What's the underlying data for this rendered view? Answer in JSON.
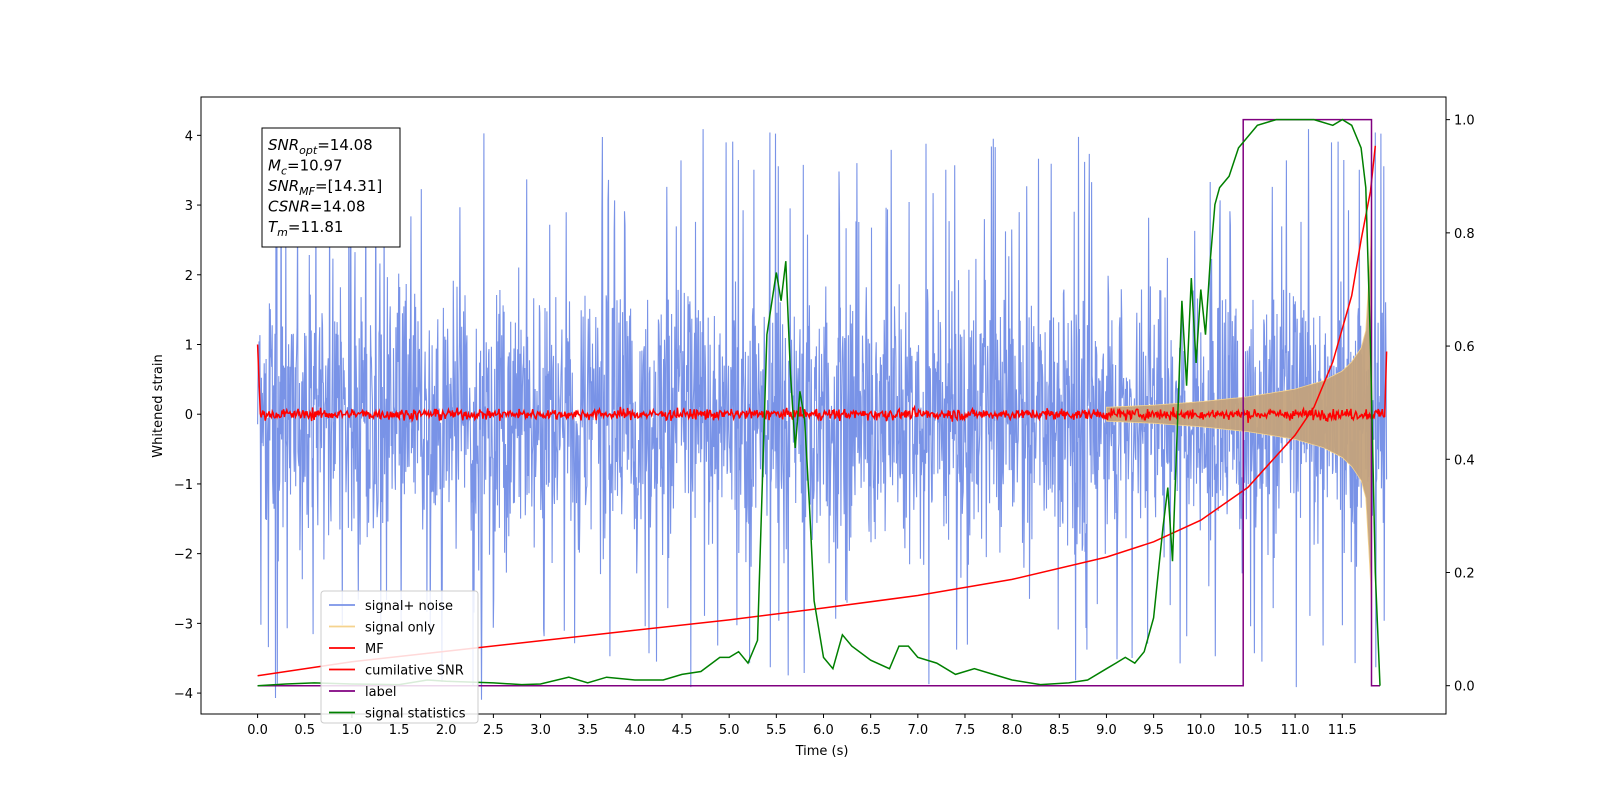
{
  "chart_data": {
    "type": "line",
    "xlabel": "Time (s)",
    "ylabel": "Whitened strain",
    "xlim": [
      -0.6,
      12.6
    ],
    "ylim": [
      -4.3,
      4.55
    ],
    "ylim_right": [
      -0.05,
      1.04
    ],
    "x_ticks": [
      "0.0",
      "0.5",
      "1.0",
      "1.5",
      "2.0",
      "2.5",
      "3.0",
      "3.5",
      "4.0",
      "4.5",
      "5.0",
      "5.5",
      "6.0",
      "6.5",
      "7.0",
      "7.5",
      "8.0",
      "8.5",
      "9.0",
      "9.5",
      "10.0",
      "10.5",
      "11.0",
      "11.5"
    ],
    "y_ticks": [
      "−4",
      "−3",
      "−2",
      "−1",
      "0",
      "1",
      "2",
      "3",
      "4"
    ],
    "y_ticks_right": [
      "0.0",
      "0.2",
      "0.4",
      "0.6",
      "0.8",
      "1.0"
    ],
    "grid": false,
    "legend_position": "lower-left",
    "annotation": [
      {
        "sym": "SNR",
        "sub": "opt",
        "value": "=14.08"
      },
      {
        "sym": "M",
        "sub": "c",
        "value": "=10.97"
      },
      {
        "sym": "SNR",
        "sub": "MF",
        "value": "=[14.31]"
      },
      {
        "sym": "CSNR",
        "sub": "",
        "value": "=14.08"
      },
      {
        "sym": "T",
        "sub": "m",
        "value": "=11.81"
      }
    ],
    "series": [
      {
        "name": "signal+ noise",
        "color": "#7993e7",
        "axis": "left",
        "style": "noise",
        "amplitude_typical": 1.7,
        "amplitude_peak": 4.2
      },
      {
        "name": "signal only",
        "color": "#f5d38e",
        "fill_color": "#c4a27c",
        "axis": "left",
        "style": "chirp",
        "envelope": {
          "x": [
            9.0,
            9.5,
            10.0,
            10.5,
            11.0,
            11.3,
            11.5,
            11.6,
            11.7,
            11.75,
            11.8,
            11.81
          ],
          "y": [
            0.1,
            0.13,
            0.18,
            0.25,
            0.36,
            0.48,
            0.62,
            0.75,
            0.95,
            1.2,
            2.4,
            3.0
          ]
        }
      },
      {
        "name": "MF",
        "color": "#ff0000",
        "axis": "left",
        "style": "mf",
        "noise_amplitude": 0.1,
        "start_value": 1.0,
        "end_value": 0.9
      },
      {
        "name": "cumilative SNR",
        "color": "#ff0000",
        "axis": "left",
        "x": [
          0.0,
          1.0,
          2.0,
          3.0,
          4.0,
          5.0,
          6.0,
          7.0,
          8.0,
          9.0,
          9.5,
          10.0,
          10.5,
          11.0,
          11.2,
          11.4,
          11.6,
          11.7,
          11.8,
          11.85
        ],
        "y": [
          -3.75,
          -3.55,
          -3.4,
          -3.25,
          -3.1,
          -2.95,
          -2.78,
          -2.6,
          -2.37,
          -2.05,
          -1.83,
          -1.52,
          -1.05,
          -0.3,
          0.1,
          0.75,
          1.7,
          2.5,
          3.2,
          3.85
        ]
      },
      {
        "name": "label",
        "color": "#800080",
        "axis": "right",
        "x": [
          0.0,
          10.45,
          10.45,
          11.81,
          11.81,
          11.9
        ],
        "y": [
          0.0,
          0.0,
          1.0,
          1.0,
          0.0,
          0.0
        ]
      },
      {
        "name": "signal statistics",
        "color": "#008000",
        "axis": "right",
        "x": [
          0.0,
          0.3,
          0.6,
          1.0,
          1.5,
          1.8,
          2.0,
          2.5,
          2.8,
          3.0,
          3.3,
          3.5,
          3.7,
          4.0,
          4.3,
          4.5,
          4.7,
          4.9,
          5.0,
          5.1,
          5.2,
          5.3,
          5.4,
          5.5,
          5.55,
          5.6,
          5.65,
          5.7,
          5.75,
          5.8,
          5.85,
          5.9,
          6.0,
          6.1,
          6.2,
          6.3,
          6.5,
          6.7,
          6.8,
          6.9,
          7.0,
          7.2,
          7.4,
          7.6,
          7.8,
          8.0,
          8.3,
          8.6,
          8.8,
          9.0,
          9.1,
          9.2,
          9.3,
          9.4,
          9.5,
          9.6,
          9.65,
          9.7,
          9.75,
          9.8,
          9.85,
          9.9,
          9.95,
          10.0,
          10.05,
          10.1,
          10.15,
          10.2,
          10.3,
          10.4,
          10.5,
          10.6,
          10.8,
          11.0,
          11.2,
          11.4,
          11.5,
          11.6,
          11.7,
          11.75,
          11.8,
          11.85,
          11.9
        ],
        "y": [
          0.0,
          0.003,
          0.005,
          0.003,
          0.002,
          0.01,
          0.008,
          0.005,
          0.002,
          0.003,
          0.015,
          0.005,
          0.015,
          0.01,
          0.01,
          0.02,
          0.025,
          0.05,
          0.05,
          0.06,
          0.04,
          0.08,
          0.62,
          0.73,
          0.68,
          0.75,
          0.55,
          0.42,
          0.52,
          0.47,
          0.32,
          0.15,
          0.05,
          0.03,
          0.09,
          0.07,
          0.045,
          0.03,
          0.07,
          0.07,
          0.05,
          0.04,
          0.02,
          0.03,
          0.02,
          0.01,
          0.002,
          0.005,
          0.01,
          0.03,
          0.04,
          0.05,
          0.04,
          0.06,
          0.12,
          0.28,
          0.35,
          0.22,
          0.45,
          0.68,
          0.53,
          0.72,
          0.57,
          0.7,
          0.62,
          0.75,
          0.85,
          0.88,
          0.9,
          0.95,
          0.97,
          0.99,
          1.0,
          1.0,
          1.0,
          0.99,
          1.0,
          0.99,
          0.95,
          0.88,
          0.6,
          0.2,
          0.0
        ]
      }
    ]
  }
}
